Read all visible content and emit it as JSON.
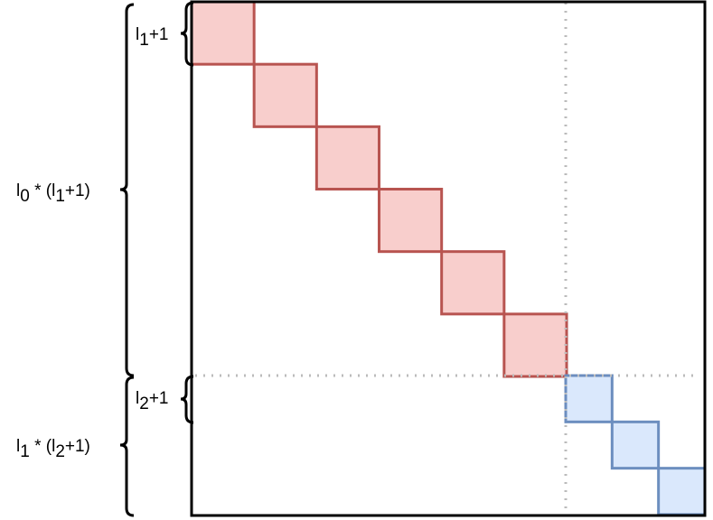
{
  "labels": [
    {
      "parts": [
        "l",
        "1",
        "+1"
      ]
    },
    {
      "parts": [
        "l",
        "0",
        " * (l",
        "1",
        "+1)"
      ]
    },
    {
      "parts": [
        "l",
        "2",
        "+1"
      ]
    },
    {
      "parts": [
        "l",
        "1",
        " * (l",
        "2",
        "+1)"
      ]
    }
  ]
}
